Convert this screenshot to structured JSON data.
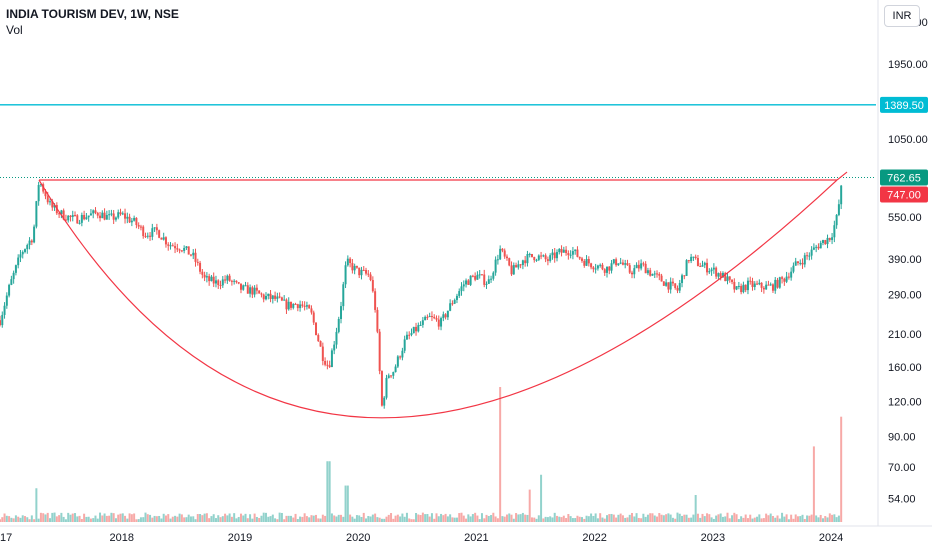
{
  "header": {
    "title": "INDIA TOURISM DEV, 1W, NSE",
    "volume_label": "Vol"
  },
  "currency": "INR",
  "colors": {
    "up": "#26a69a",
    "down": "#ef5350",
    "resistance_line": "#00bcd4",
    "pattern_line": "#f23645",
    "price_badge": "#089981",
    "pattern_badge": "#f23645"
  },
  "chart_data": {
    "type": "candlestick",
    "title": "INDIA TOURISM DEV, 1W, NSE",
    "scale": "log",
    "y_ticks": [
      2750,
      1950,
      1050,
      550,
      390,
      290,
      210,
      160,
      120,
      90,
      70,
      54
    ],
    "y_tick_labels": [
      "2750.00",
      "1950.00",
      "1050.00",
      "550.00",
      "390.00",
      "290.00",
      "210.00",
      "160.00",
      "120.00",
      "90.00",
      "70.00",
      "54.00"
    ],
    "x_ticks": [
      "17",
      "2018",
      "2019",
      "2020",
      "2021",
      "2022",
      "2023",
      "2024"
    ],
    "x_range": [
      2016.97,
      2024.38
    ],
    "y_range": [
      43,
      3300
    ],
    "horizontal_lines": [
      {
        "label": "1389.50",
        "value": 1389.5,
        "style": "solid"
      },
      {
        "label": "747.00",
        "value": 747.0,
        "style": "solid"
      }
    ],
    "current_price": {
      "label": "762.65",
      "value": 762.65,
      "style": "dotted"
    },
    "annotations": [
      {
        "type": "curve",
        "description": "cup (rounded bottom)",
        "points": [
          [
            2017.3,
            747
          ],
          [
            2020.2,
            105
          ],
          [
            2024.05,
            747
          ]
        ]
      },
      {
        "type": "line",
        "description": "rim line",
        "points": [
          [
            2017.3,
            747
          ],
          [
            2024.05,
            747
          ]
        ]
      }
    ],
    "price_path": [
      [
        2016.97,
        235
      ],
      [
        2017.05,
        310
      ],
      [
        2017.15,
        410
      ],
      [
        2017.25,
        470
      ],
      [
        2017.3,
        747
      ],
      [
        2017.4,
        600
      ],
      [
        2017.5,
        560
      ],
      [
        2017.6,
        540
      ],
      [
        2017.7,
        555
      ],
      [
        2017.8,
        570
      ],
      [
        2017.9,
        545
      ],
      [
        2018.0,
        560
      ],
      [
        2018.1,
        530
      ],
      [
        2018.2,
        480
      ],
      [
        2018.3,
        490
      ],
      [
        2018.4,
        440
      ],
      [
        2018.5,
        430
      ],
      [
        2018.6,
        400
      ],
      [
        2018.7,
        330
      ],
      [
        2018.8,
        320
      ],
      [
        2018.9,
        330
      ],
      [
        2019.0,
        305
      ],
      [
        2019.1,
        300
      ],
      [
        2019.2,
        285
      ],
      [
        2019.3,
        280
      ],
      [
        2019.4,
        265
      ],
      [
        2019.5,
        270
      ],
      [
        2019.6,
        250
      ],
      [
        2019.7,
        175
      ],
      [
        2019.75,
        160
      ],
      [
        2019.8,
        200
      ],
      [
        2019.85,
        260
      ],
      [
        2019.9,
        380
      ],
      [
        2020.0,
        350
      ],
      [
        2020.1,
        340
      ],
      [
        2020.15,
        250
      ],
      [
        2020.2,
        115
      ],
      [
        2020.25,
        150
      ],
      [
        2020.3,
        155
      ],
      [
        2020.4,
        200
      ],
      [
        2020.5,
        220
      ],
      [
        2020.6,
        240
      ],
      [
        2020.7,
        230
      ],
      [
        2020.8,
        275
      ],
      [
        2020.9,
        320
      ],
      [
        2021.0,
        340
      ],
      [
        2021.1,
        320
      ],
      [
        2021.2,
        420
      ],
      [
        2021.3,
        350
      ],
      [
        2021.4,
        390
      ],
      [
        2021.5,
        400
      ],
      [
        2021.6,
        385
      ],
      [
        2021.7,
        410
      ],
      [
        2021.8,
        420
      ],
      [
        2021.9,
        385
      ],
      [
        2022.0,
        370
      ],
      [
        2022.1,
        360
      ],
      [
        2022.2,
        385
      ],
      [
        2022.3,
        350
      ],
      [
        2022.4,
        370
      ],
      [
        2022.5,
        340
      ],
      [
        2022.6,
        320
      ],
      [
        2022.7,
        300
      ],
      [
        2022.8,
        395
      ],
      [
        2022.9,
        370
      ],
      [
        2023.0,
        355
      ],
      [
        2023.1,
        335
      ],
      [
        2023.2,
        300
      ],
      [
        2023.3,
        315
      ],
      [
        2023.4,
        310
      ],
      [
        2023.5,
        310
      ],
      [
        2023.6,
        330
      ],
      [
        2023.7,
        370
      ],
      [
        2023.8,
        400
      ],
      [
        2023.9,
        440
      ],
      [
        2024.0,
        470
      ],
      [
        2024.05,
        550
      ],
      [
        2024.1,
        762.65
      ]
    ],
    "volume_spikes": [
      [
        2017.28,
        0.25
      ],
      [
        2019.75,
        0.45
      ],
      [
        2019.9,
        0.27
      ],
      [
        2021.2,
        1.0
      ],
      [
        2021.45,
        0.24
      ],
      [
        2021.55,
        0.35
      ],
      [
        2022.85,
        0.2
      ],
      [
        2023.85,
        0.56
      ],
      [
        2024.08,
        0.78
      ],
      [
        2024.11,
        0.37
      ]
    ]
  }
}
